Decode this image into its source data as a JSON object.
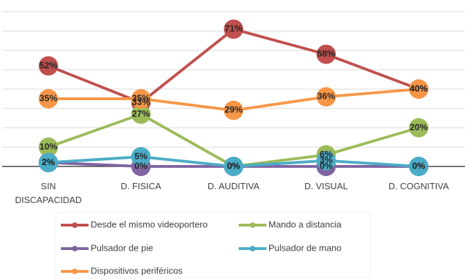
{
  "chart_data": {
    "type": "line",
    "categories": [
      "SIN DISCAPACIDAD",
      "D. FISICA",
      "D. AUDITIVA",
      "D. VISUAL",
      "D. COGNITIVA"
    ],
    "ylim": [
      0,
      80
    ],
    "yticks": [
      0,
      10,
      20,
      30,
      40,
      50,
      60,
      70,
      80
    ],
    "grid": true,
    "series": [
      {
        "name": "Desde el mismo videoportero",
        "color": "#c0504d",
        "values": [
          52,
          33,
          71,
          58,
          40
        ],
        "value_labels": [
          "52%",
          "33%",
          "71%",
          "58%",
          "40%"
        ]
      },
      {
        "name": "Mando a distancia",
        "color": "#9bbb59",
        "values": [
          10,
          27,
          0,
          6,
          20
        ],
        "value_labels": [
          "10%",
          "27%",
          "0%",
          "6%",
          "20%"
        ]
      },
      {
        "name": "Pulsador de pie",
        "color": "#8064a2",
        "values": [
          2,
          0,
          0,
          0,
          0
        ],
        "value_labels": [
          "2%",
          "0%",
          "0%",
          "0%",
          "0%"
        ]
      },
      {
        "name": "Pulsador de mano",
        "color": "#4bacc6",
        "values": [
          2,
          5,
          0,
          3,
          0
        ],
        "value_labels": [
          "2%",
          "5%",
          "0%",
          "3%",
          "0%"
        ]
      },
      {
        "name": "Dispositivos periféricos",
        "color": "#f79646",
        "values": [
          35,
          35,
          29,
          36,
          40
        ],
        "value_labels": [
          "35%",
          "35%",
          "29%",
          "36%",
          "40%"
        ]
      }
    ]
  }
}
